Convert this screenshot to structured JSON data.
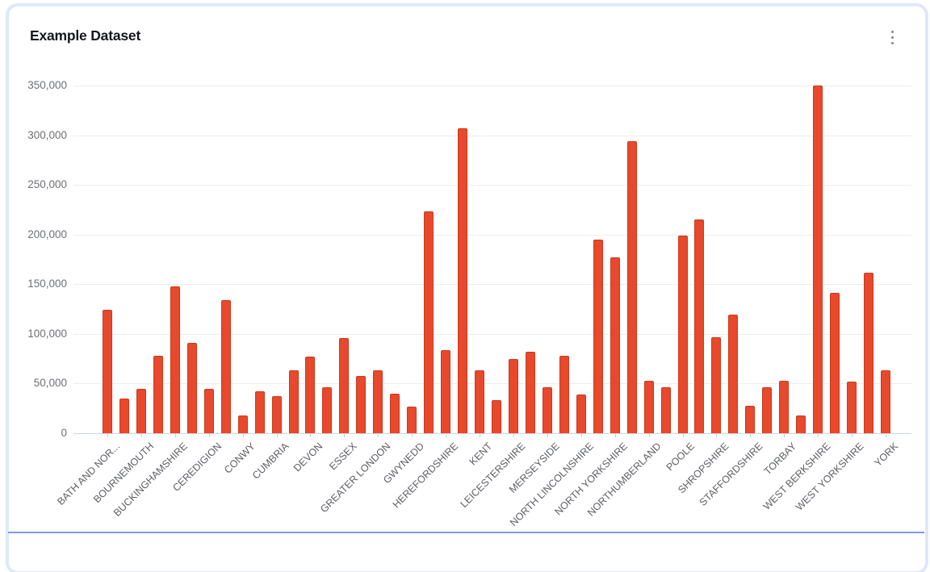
{
  "card": {
    "title": "Example Dataset",
    "menu_icon": "kebab-vertical-icon"
  },
  "chart_data": {
    "type": "bar",
    "title": "Example Dataset",
    "xlabel": "",
    "ylabel": "",
    "ylim": [
      0,
      350000
    ],
    "ytick_step": 50000,
    "ytick_labels": [
      "0",
      "50,000",
      "100,000",
      "150,000",
      "200,000",
      "250,000",
      "300,000",
      "350,000"
    ],
    "grid": "horizontal",
    "legend": "none",
    "bar_color": "#e8482c",
    "bar_border_color": "#cb3a1d",
    "note": "Axis shows a label under every second bar; unlabeled bars have label \"\"",
    "bars": [
      {
        "label": "BATH AND NOR...",
        "value": 124000
      },
      {
        "label": "",
        "value": 35000
      },
      {
        "label": "BOURNEMOUTH",
        "value": 45000
      },
      {
        "label": "",
        "value": 78000
      },
      {
        "label": "BUCKINGHAMSHIRE",
        "value": 148000
      },
      {
        "label": "",
        "value": 91000
      },
      {
        "label": "CEREDIGION",
        "value": 45000
      },
      {
        "label": "",
        "value": 134000
      },
      {
        "label": "CONWY",
        "value": 18000
      },
      {
        "label": "",
        "value": 42000
      },
      {
        "label": "CUMBRIA",
        "value": 37000
      },
      {
        "label": "",
        "value": 63000
      },
      {
        "label": "DEVON",
        "value": 77000
      },
      {
        "label": "",
        "value": 46000
      },
      {
        "label": "ESSEX",
        "value": 96000
      },
      {
        "label": "",
        "value": 58000
      },
      {
        "label": "GREATER LONDON",
        "value": 63000
      },
      {
        "label": "",
        "value": 40000
      },
      {
        "label": "GWYNEDD",
        "value": 27000
      },
      {
        "label": "",
        "value": 223000
      },
      {
        "label": "HEREFORDSHIRE",
        "value": 84000
      },
      {
        "label": "",
        "value": 307000
      },
      {
        "label": "KENT",
        "value": 63000
      },
      {
        "label": "",
        "value": 33000
      },
      {
        "label": "LEICESTERSHIRE",
        "value": 75000
      },
      {
        "label": "",
        "value": 82000
      },
      {
        "label": "MERSEYSIDE",
        "value": 46000
      },
      {
        "label": "",
        "value": 78000
      },
      {
        "label": "NORTH LINCOLNSHIRE",
        "value": 39000
      },
      {
        "label": "",
        "value": 195000
      },
      {
        "label": "NORTH YORKSHIRE",
        "value": 177000
      },
      {
        "label": "",
        "value": 294000
      },
      {
        "label": "NORTHUMBERLAND",
        "value": 53000
      },
      {
        "label": "",
        "value": 46000
      },
      {
        "label": "POOLE",
        "value": 199000
      },
      {
        "label": "",
        "value": 215000
      },
      {
        "label": "SHROPSHIRE",
        "value": 97000
      },
      {
        "label": "",
        "value": 119000
      },
      {
        "label": "STAFFORDSHIRE",
        "value": 28000
      },
      {
        "label": "",
        "value": 46000
      },
      {
        "label": "TORBAY",
        "value": 53000
      },
      {
        "label": "",
        "value": 18000
      },
      {
        "label": "WEST BERKSHIRE",
        "value": 350000
      },
      {
        "label": "",
        "value": 141000
      },
      {
        "label": "WEST YORKSHIRE",
        "value": 52000
      },
      {
        "label": "",
        "value": 162000
      },
      {
        "label": "YORK",
        "value": 63000
      }
    ]
  }
}
